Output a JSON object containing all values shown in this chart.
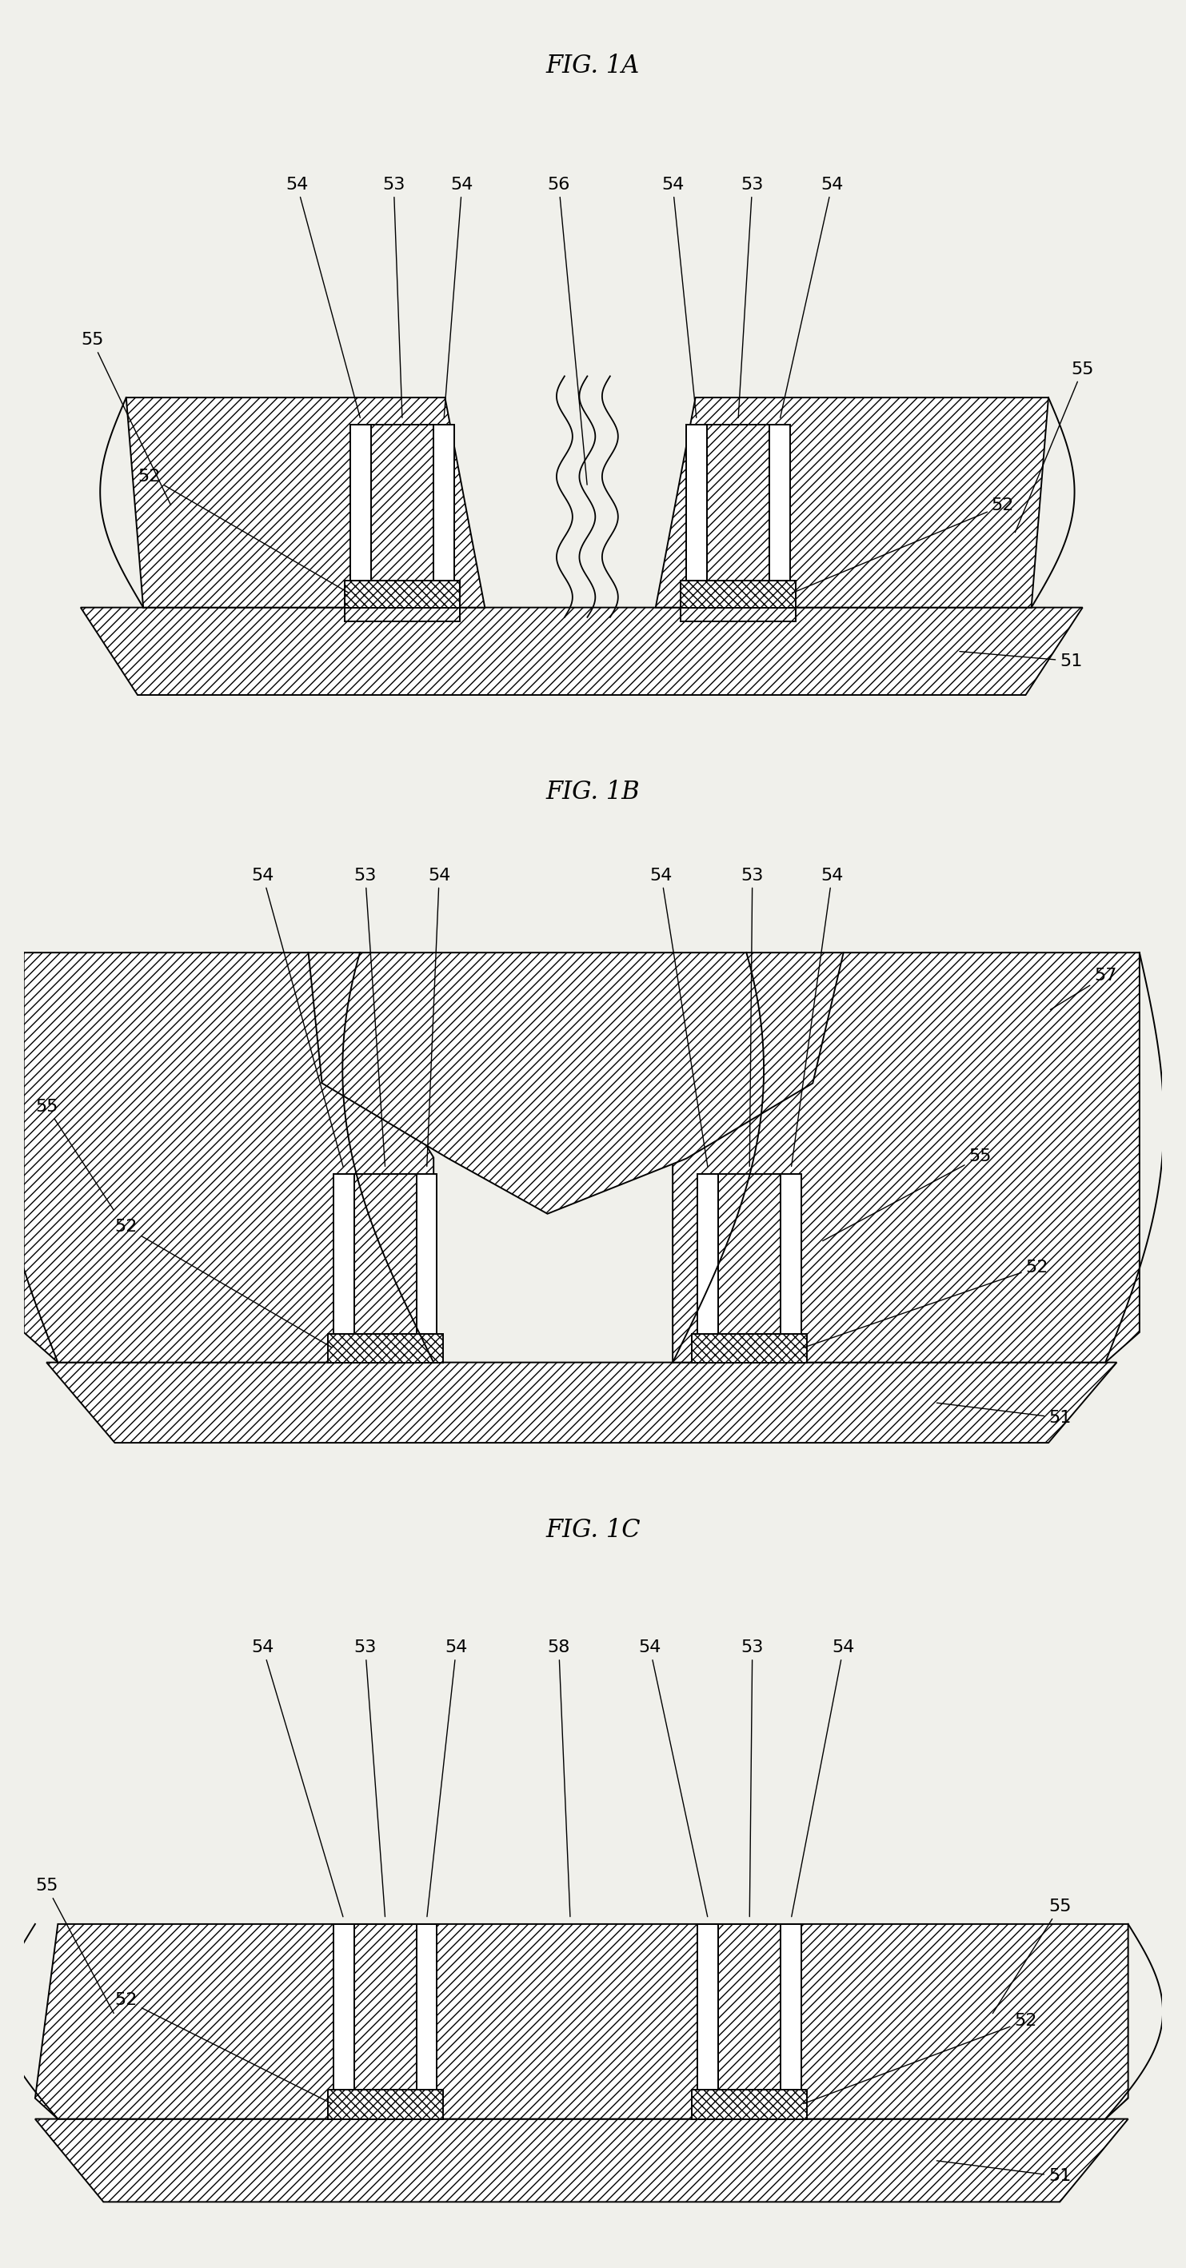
{
  "figures": [
    "FIG. 1A",
    "FIG. 1B",
    "FIG. 1C"
  ],
  "background_color": "#f0f0eb",
  "line_color": "#000000",
  "fig_title_fontsize": 22,
  "label_fontsize": 16,
  "line_width": 1.4,
  "fig_width": 14.83,
  "fig_height": 28.36
}
